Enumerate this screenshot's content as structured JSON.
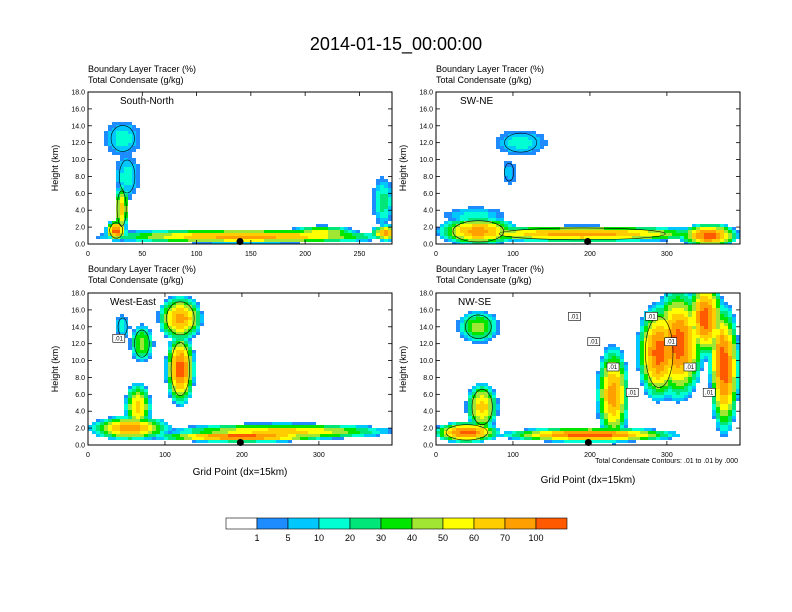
{
  "page_title": "2014-01-15_00:00:00",
  "chart_data": [
    {
      "type": "heatmap",
      "panel_label": "South-North",
      "heading_line1": "Boundary Layer Tracer   (%)",
      "heading_line2": "Total Condensate   (g/kg)",
      "ylabel": "Height (km)",
      "xlabel": "",
      "xlim": [
        0,
        280
      ],
      "ylim": [
        0,
        18
      ],
      "xticks": [
        0,
        50,
        100,
        150,
        200,
        250
      ],
      "yticks": [
        "0.0",
        "2.0",
        "4.0",
        "6.0",
        "8.0",
        "10.0",
        "12.0",
        "14.0",
        "16.0",
        "18.0"
      ],
      "marker_x": 140,
      "contour_labels": []
    },
    {
      "type": "heatmap",
      "panel_label": "SW-NE",
      "heading_line1": "Boundary Layer Tracer   (%)",
      "heading_line2": "Total Condensate   (g/kg)",
      "ylabel": "Height (km)",
      "xlabel": "",
      "xlim": [
        0,
        395
      ],
      "ylim": [
        0,
        18
      ],
      "xticks": [
        0,
        100,
        200,
        300
      ],
      "yticks": [
        "0.0",
        "2.0",
        "4.0",
        "6.0",
        "8.0",
        "10.0",
        "12.0",
        "14.0",
        "16.0",
        "18.0"
      ],
      "marker_x": 197,
      "contour_labels": []
    },
    {
      "type": "heatmap",
      "panel_label": "West-East",
      "heading_line1": "Boundary Layer Tracer   (%)",
      "heading_line2": "Total Condensate   (g/kg)",
      "ylabel": "Height (km)",
      "xlabel": "Grid Point (dx=15km)",
      "xlim": [
        0,
        395
      ],
      "ylim": [
        0,
        18
      ],
      "xticks": [
        0,
        100,
        200,
        300
      ],
      "yticks": [
        "0.0",
        "2.0",
        "4.0",
        "6.0",
        "8.0",
        "10.0",
        "12.0",
        "14.0",
        "16.0",
        "18.0"
      ],
      "marker_x": 198,
      "contour_labels": [
        ".01"
      ]
    },
    {
      "type": "heatmap",
      "panel_label": "NW-SE",
      "heading_line1": "Boundary Layer Tracer   (%)",
      "heading_line2": "Total Condensate   (g/kg)",
      "ylabel": "Height (km)",
      "xlabel": "Grid Point (dx=15km)",
      "xlim": [
        0,
        395
      ],
      "ylim": [
        0,
        18
      ],
      "xticks": [
        0,
        100,
        200,
        300
      ],
      "yticks": [
        "0.0",
        "2.0",
        "4.0",
        "6.0",
        "8.0",
        "10.0",
        "12.0",
        "14.0",
        "16.0",
        "18.0"
      ],
      "marker_x": 198,
      "contour_labels": [
        ".01",
        ".01",
        ".01",
        ".01",
        ".01",
        ".01",
        ".01",
        ".01"
      ],
      "footnote": "Total Condensate Contours: .01 to .01 by .000"
    }
  ],
  "colorbar": {
    "labels": [
      "1",
      "5",
      "10",
      "20",
      "30",
      "40",
      "50",
      "60",
      "70",
      "100"
    ],
    "colors": [
      "#ffffff",
      "#1e8cff",
      "#00c8ff",
      "#00ffd2",
      "#00e678",
      "#00e600",
      "#a0e632",
      "#ffff00",
      "#ffcd00",
      "#ffa000",
      "#ff5a00",
      "#ff0000"
    ]
  }
}
